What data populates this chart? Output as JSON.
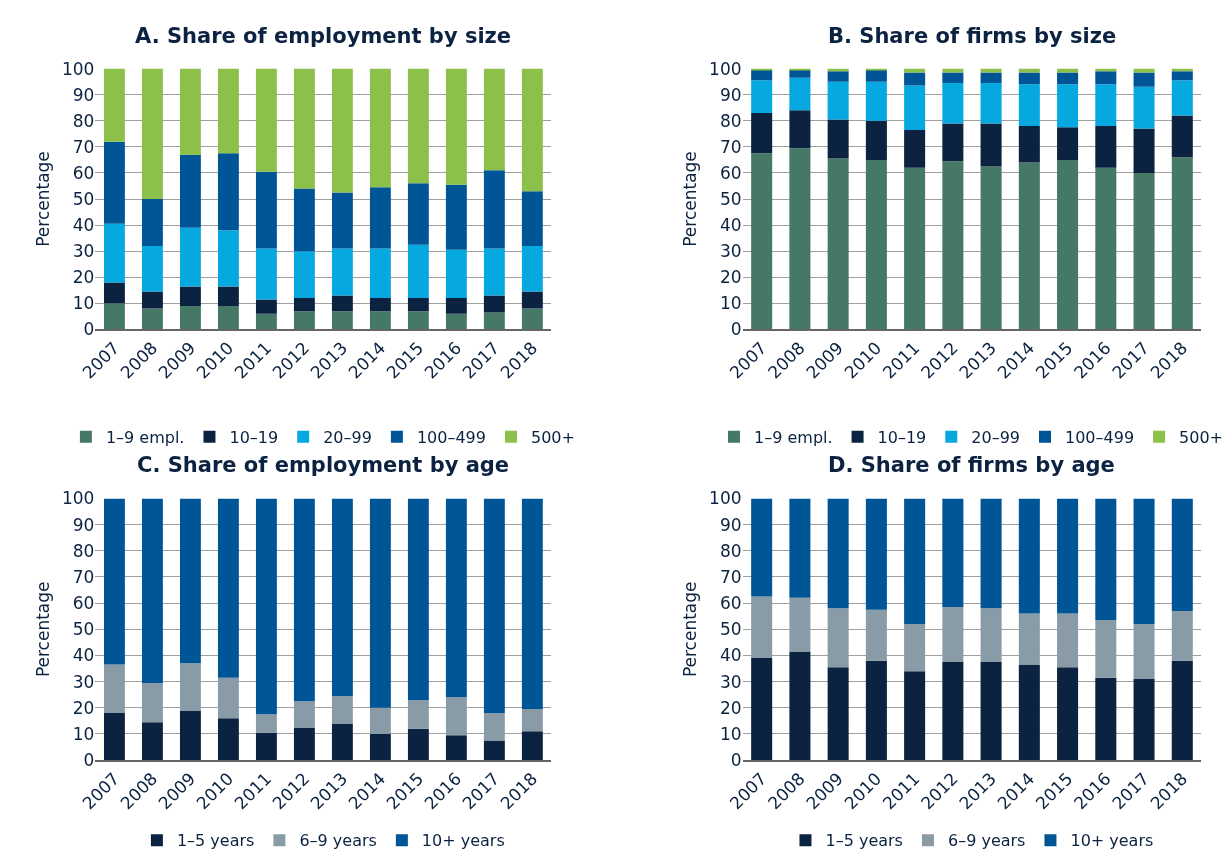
{
  "chart_data": [
    {
      "type": "bar",
      "stacked": true,
      "title": "A. Share of employment by size",
      "ylabel": "Percentage",
      "categories": [
        "2007",
        "2008",
        "2009",
        "2010",
        "2011",
        "2012",
        "2013",
        "2014",
        "2015",
        "2016",
        "2017",
        "2018"
      ],
      "ylim": [
        0,
        100
      ],
      "yticks": [
        0,
        10,
        20,
        30,
        40,
        50,
        60,
        70,
        80,
        90,
        100
      ],
      "grid": "y",
      "legend": "bottom",
      "series": [
        {
          "name": "1–9 empl.",
          "color": "#467866",
          "values": [
            10,
            8,
            9,
            9,
            6,
            7,
            7,
            7,
            7,
            6,
            6.5,
            8
          ]
        },
        {
          "name": "10–19",
          "color": "#0b2241",
          "values": [
            8,
            6.5,
            7.5,
            7.5,
            5.5,
            5,
            6,
            5,
            5,
            6,
            6.5,
            6.5
          ]
        },
        {
          "name": "20–99",
          "color": "#05a9e0",
          "values": [
            22.5,
            17.5,
            22.5,
            21.5,
            19.5,
            18,
            18,
            19,
            20.5,
            18.5,
            18,
            17.5
          ]
        },
        {
          "name": "100–499",
          "color": "#005596",
          "values": [
            31.5,
            18,
            28,
            29.5,
            29.5,
            24,
            21.5,
            23.5,
            23.5,
            25,
            30,
            21
          ]
        },
        {
          "name": "500+",
          "color": "#8bc04a",
          "values": [
            28,
            50,
            33,
            32.5,
            39.5,
            46,
            47.5,
            45.5,
            44,
            44.5,
            39,
            47
          ]
        }
      ]
    },
    {
      "type": "bar",
      "stacked": true,
      "title": "B. Share of firms by size",
      "ylabel": "Percentage",
      "categories": [
        "2007",
        "2008",
        "2009",
        "2010",
        "2011",
        "2012",
        "2013",
        "2014",
        "2015",
        "2016",
        "2017",
        "2018"
      ],
      "ylim": [
        0,
        100
      ],
      "yticks": [
        0,
        10,
        20,
        30,
        40,
        50,
        60,
        70,
        80,
        90,
        100
      ],
      "grid": "y",
      "legend": "bottom",
      "series": [
        {
          "name": "1–9 empl.",
          "color": "#467866",
          "values": [
            67.5,
            69.5,
            65.5,
            65,
            62,
            64.5,
            62.5,
            64,
            65,
            62,
            60,
            66
          ]
        },
        {
          "name": "10–19",
          "color": "#0b2241",
          "values": [
            15.5,
            14.5,
            15,
            15,
            14.5,
            14.5,
            16.5,
            14,
            12.5,
            16,
            17,
            16
          ]
        },
        {
          "name": "20–99",
          "color": "#05a9e0",
          "values": [
            12.5,
            12.5,
            14.5,
            15,
            17,
            15.5,
            15.5,
            16,
            16.5,
            16,
            16,
            13.5
          ]
        },
        {
          "name": "100–499",
          "color": "#005596",
          "values": [
            4,
            3,
            4,
            4.5,
            5,
            4,
            4,
            4.5,
            4.5,
            5,
            5.5,
            3.5
          ]
        },
        {
          "name": "500+",
          "color": "#8bc04a",
          "values": [
            0.5,
            0.5,
            1,
            0.5,
            1.5,
            1.5,
            1.5,
            1.5,
            1.5,
            1,
            1.5,
            1
          ]
        }
      ]
    },
    {
      "type": "bar",
      "stacked": true,
      "title": "C. Share of employment by age",
      "ylabel": "Percentage",
      "categories": [
        "2007",
        "2008",
        "2009",
        "2010",
        "2011",
        "2012",
        "2013",
        "2014",
        "2015",
        "2016",
        "2017",
        "2018"
      ],
      "ylim": [
        0,
        100
      ],
      "yticks": [
        0,
        10,
        20,
        30,
        40,
        50,
        60,
        70,
        80,
        90,
        100
      ],
      "grid": "y",
      "legend": "bottom",
      "series": [
        {
          "name": "1–5 years",
          "color": "#0b2241",
          "values": [
            18,
            14.5,
            19,
            16,
            10.5,
            12.5,
            14,
            10,
            12,
            9.5,
            7.5,
            11
          ]
        },
        {
          "name": "6–9 years",
          "color": "#8a9ba8",
          "values": [
            18.5,
            15,
            18,
            15.5,
            7,
            10,
            10.5,
            10,
            11,
            14.5,
            10.5,
            8.5
          ]
        },
        {
          "name": "10+ years",
          "color": "#005596",
          "values": [
            63.5,
            70.5,
            63,
            68.5,
            82.5,
            77.5,
            75.5,
            80,
            77,
            76,
            82,
            80.5
          ]
        }
      ]
    },
    {
      "type": "bar",
      "stacked": true,
      "title": "D. Share of firms by age",
      "ylabel": "Percentage",
      "categories": [
        "2007",
        "2008",
        "2009",
        "2010",
        "2011",
        "2012",
        "2013",
        "2014",
        "2015",
        "2016",
        "2017",
        "2018"
      ],
      "ylim": [
        0,
        100
      ],
      "yticks": [
        0,
        10,
        20,
        30,
        40,
        50,
        60,
        70,
        80,
        90,
        100
      ],
      "grid": "y",
      "legend": "bottom",
      "series": [
        {
          "name": "1–5 years",
          "color": "#0b2241",
          "values": [
            39,
            41.5,
            35.5,
            38,
            34,
            37.5,
            37.5,
            36.5,
            35.5,
            31.5,
            31,
            38
          ]
        },
        {
          "name": "6–9 years",
          "color": "#8a9ba8",
          "values": [
            23.5,
            20.5,
            22.5,
            19.5,
            18,
            21,
            20.5,
            19.5,
            20.5,
            22,
            21,
            19
          ]
        },
        {
          "name": "10+ years",
          "color": "#005596",
          "values": [
            37.5,
            38,
            42,
            42.5,
            48,
            41.5,
            42,
            44,
            44,
            46.5,
            48,
            43
          ]
        }
      ]
    }
  ]
}
